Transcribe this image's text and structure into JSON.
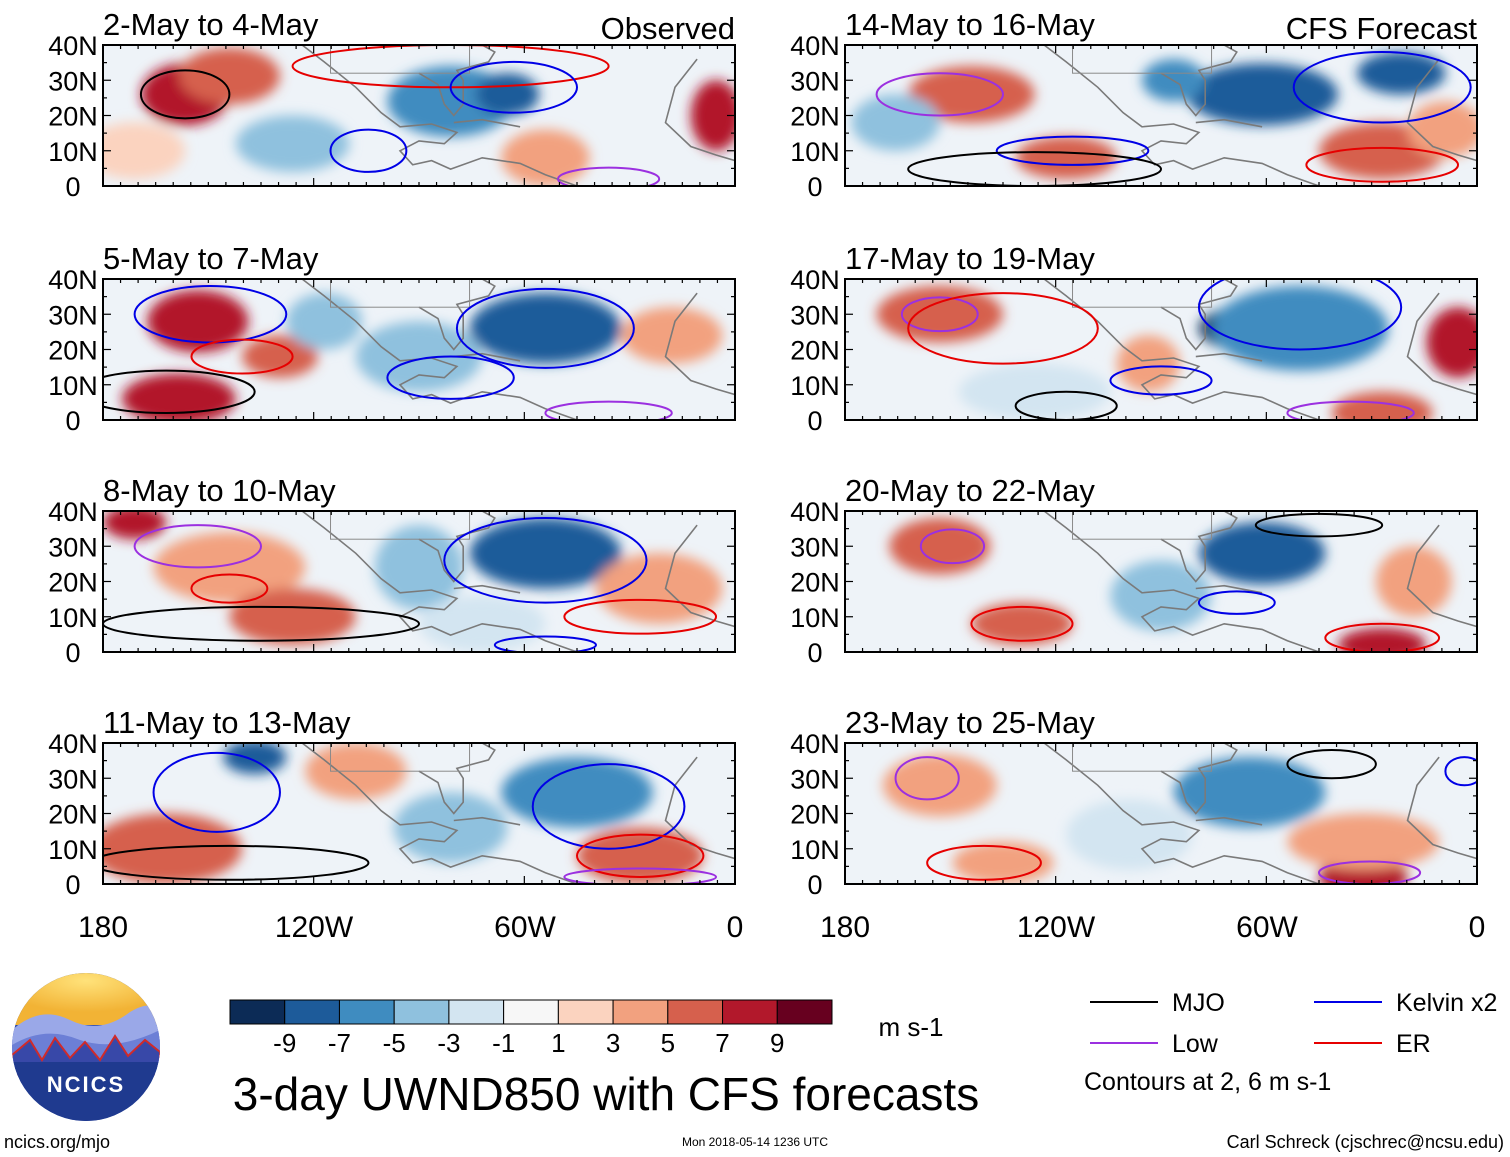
{
  "chart_data": {
    "type": "heatmap",
    "title": "3-day UWND850 with CFS forecasts",
    "variable": "UWND850",
    "units": "m s-1",
    "x_tick_labels": [
      "180",
      "120W",
      "60W",
      "0"
    ],
    "y_tick_labels": [
      "40N",
      "30N",
      "20N",
      "10N",
      "0"
    ],
    "xlim_deg_east": [
      -180,
      0
    ],
    "ylim_deg_north": [
      0,
      40
    ],
    "colorbar": {
      "tick_labels": [
        "-9",
        "-7",
        "-5",
        "-3",
        "-1",
        "1",
        "3",
        "5",
        "7",
        "9"
      ],
      "levels": [
        -9,
        -7,
        -5,
        -3,
        -1,
        1,
        3,
        5,
        7,
        9
      ],
      "colors": [
        "#0c2b56",
        "#1d5b9a",
        "#3f8cc0",
        "#8fc1de",
        "#d3e5f1",
        "#f7f7f7",
        "#fbd3bf",
        "#f2a17f",
        "#d6604d",
        "#b2182b",
        "#67001f"
      ]
    },
    "panels": [
      {
        "id": "p1",
        "label": "2-May to 4-May",
        "tag": "Observed"
      },
      {
        "id": "p2",
        "label": "5-May to 7-May"
      },
      {
        "id": "p3",
        "label": "8-May to 10-May"
      },
      {
        "id": "p4",
        "label": "11-May to 13-May"
      },
      {
        "id": "p5",
        "label": "14-May to 16-May",
        "tag": "CFS Forecast"
      },
      {
        "id": "p6",
        "label": "17-May to 19-May"
      },
      {
        "id": "p7",
        "label": "20-May to 22-May"
      },
      {
        "id": "p8",
        "label": "23-May to 25-May"
      }
    ],
    "legend": {
      "items": [
        {
          "name": "MJO",
          "color": "#000000"
        },
        {
          "name": "Kelvin x2",
          "color": "#0000e6"
        },
        {
          "name": "Low",
          "color": "#9b30e0"
        },
        {
          "name": "ER",
          "color": "#e60000"
        }
      ],
      "note": "Contours at 2, 6 m s-1"
    }
  },
  "logo": {
    "text": "NCICS"
  },
  "footer": {
    "url": "ncics.org/mjo",
    "timestamp": "Mon 2018-05-14 1236 UTC",
    "author": "Carl Schreck (cjschrec@ncsu.edu)"
  }
}
